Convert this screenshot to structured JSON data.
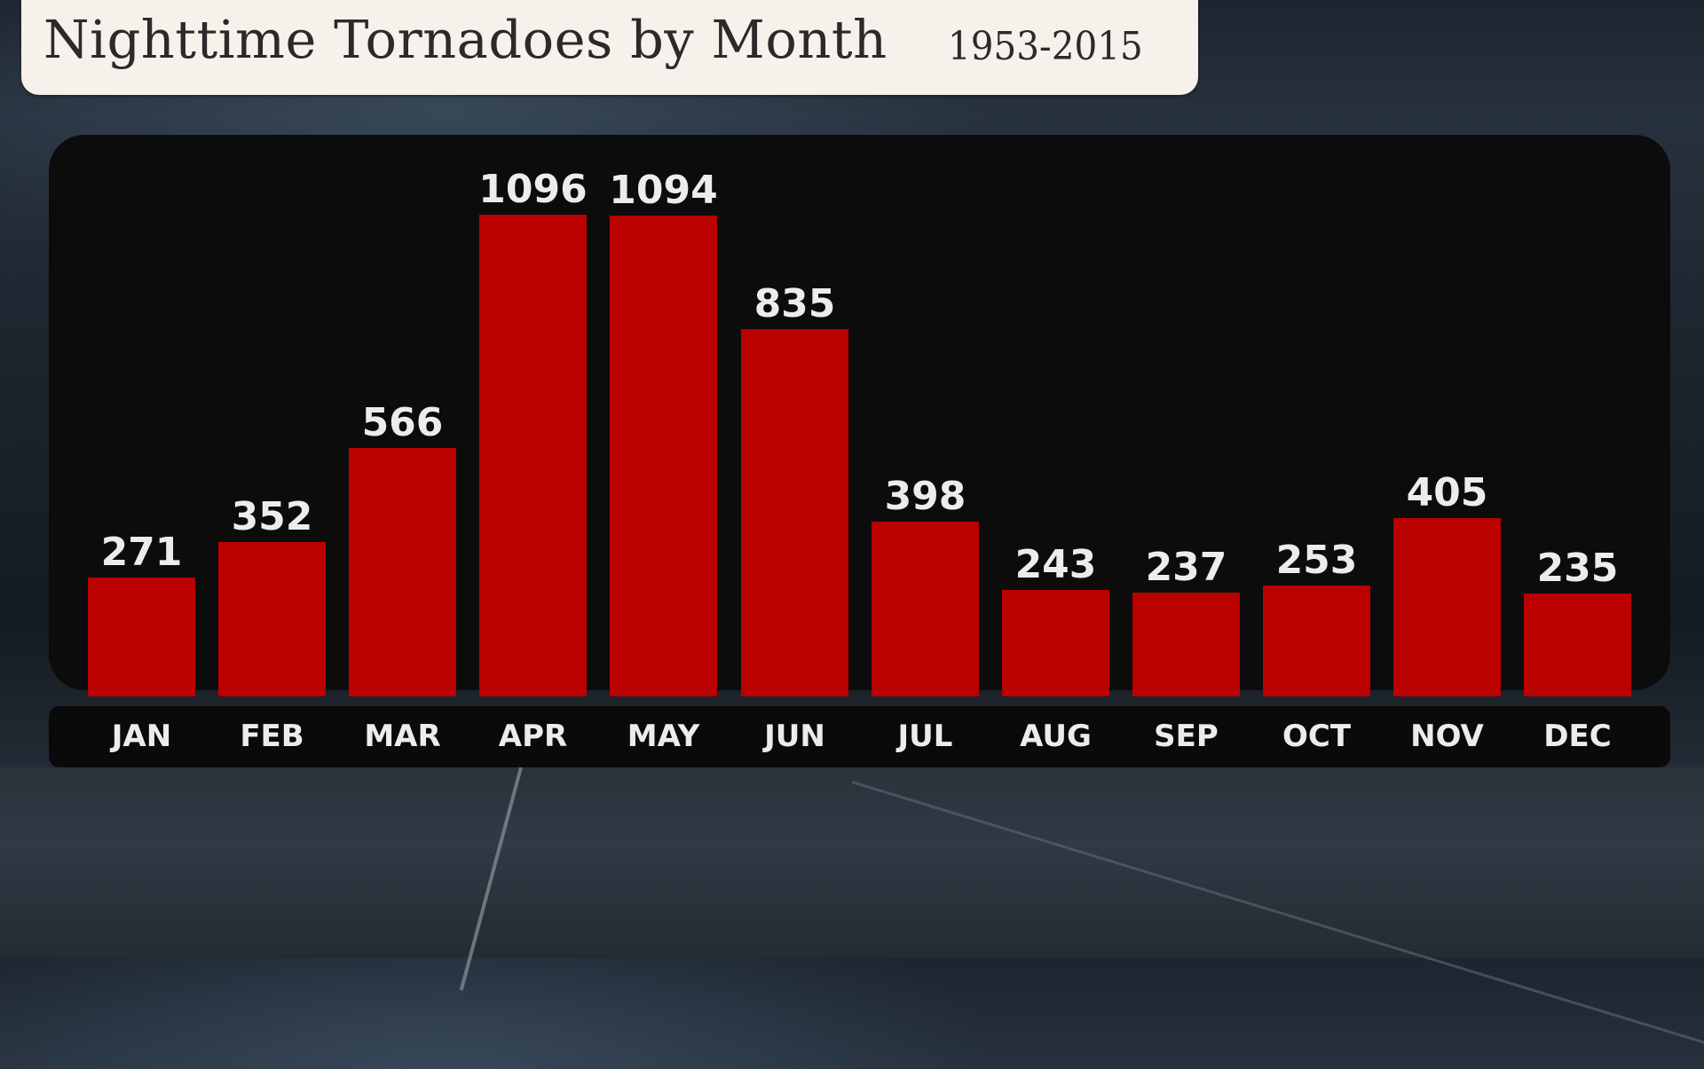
{
  "header": {
    "title": "Nighttime Tornadoes by Month",
    "subtitle": "1953-2015"
  },
  "colors": {
    "bar": "#bb0000",
    "panel": "#0c0c0c",
    "title_bg": "#f7f1eb",
    "text_light": "#ececec",
    "title_text": "#2a2a2a"
  },
  "chart_data": {
    "type": "bar",
    "title": "Nighttime Tornadoes by Month",
    "subtitle": "1953-2015",
    "xlabel": "",
    "ylabel": "",
    "categories": [
      "JAN",
      "FEB",
      "MAR",
      "APR",
      "MAY",
      "JUN",
      "JUL",
      "AUG",
      "SEP",
      "OCT",
      "NOV",
      "DEC"
    ],
    "values": [
      271,
      352,
      566,
      1096,
      1094,
      835,
      398,
      243,
      237,
      253,
      405,
      235
    ],
    "value_labels": [
      "271",
      "352",
      "566",
      "1096",
      "1094",
      "835",
      "398",
      "243",
      "237",
      "253",
      "405",
      "235"
    ],
    "ylim": [
      0,
      1100
    ],
    "grid": false,
    "legend": "none",
    "data_labels": "above bars"
  }
}
